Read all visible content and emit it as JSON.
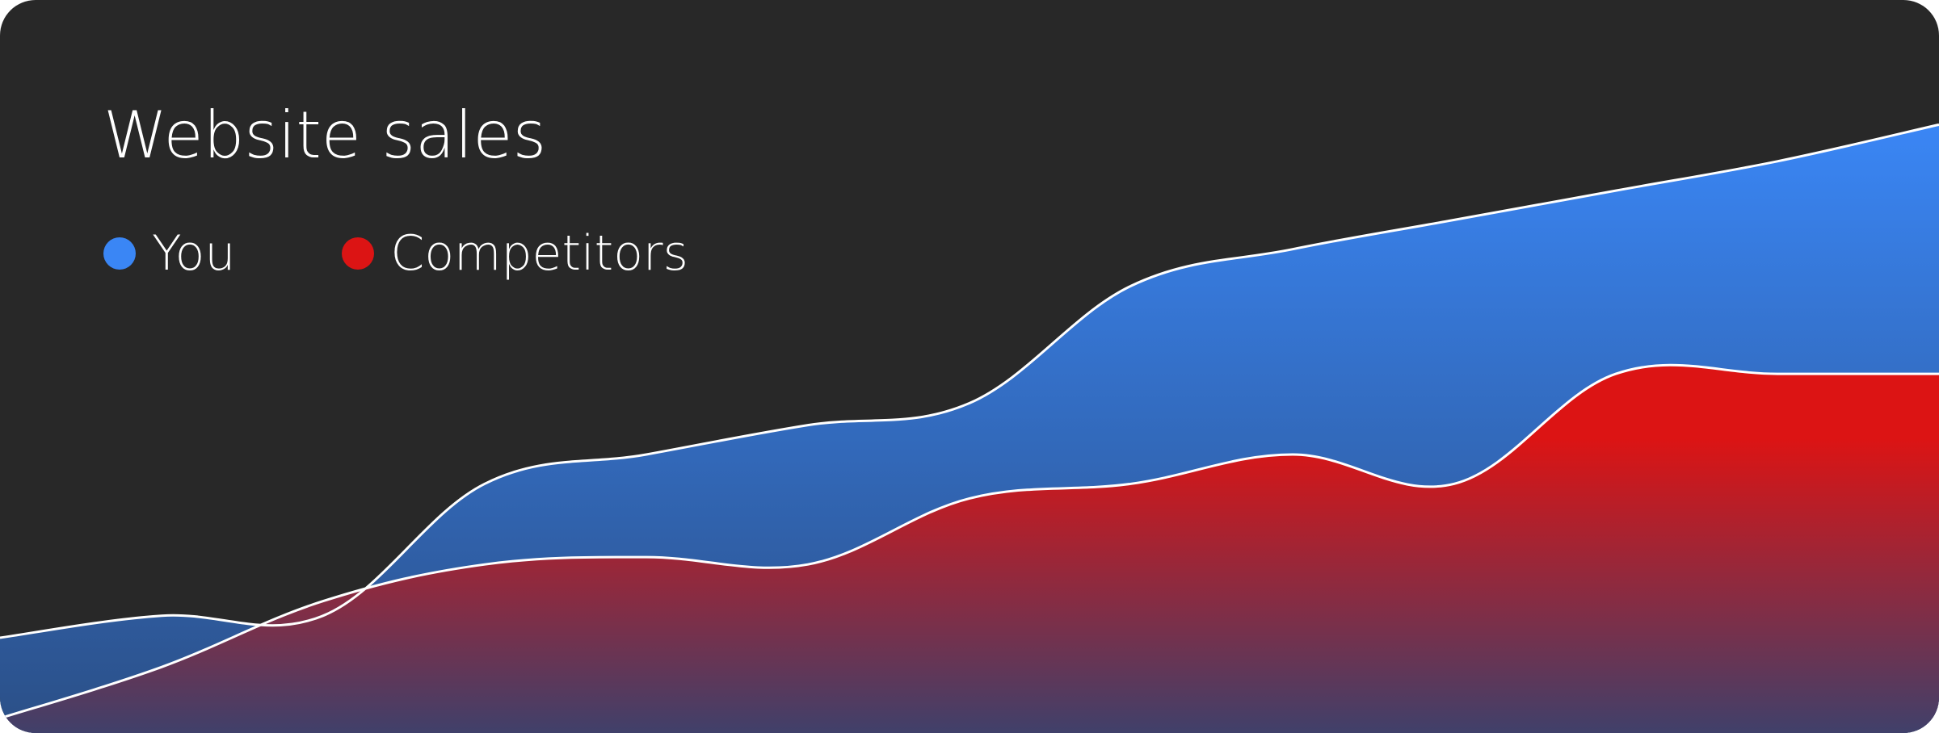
{
  "chart_data": {
    "type": "area",
    "title": "Website sales",
    "xlabel": "",
    "ylabel": "",
    "grid": false,
    "legend_position": "top-left",
    "ylim": [
      0,
      100
    ],
    "x": [
      0,
      1,
      2,
      3,
      4,
      5,
      6,
      7,
      8,
      9,
      10,
      11,
      12
    ],
    "series": [
      {
        "name": "You",
        "color": "#3A86F5",
        "color_bottom": "#2B4F86",
        "values": [
          13,
          16,
          16,
          34,
          38,
          42,
          45,
          61,
          66,
          70,
          74,
          78,
          83
        ]
      },
      {
        "name": "Competitors",
        "color": "#DC1414",
        "color_bottom": "#40406A",
        "values": [
          2,
          9,
          18,
          23,
          24,
          23,
          32,
          34,
          38,
          34,
          49,
          49,
          49
        ]
      }
    ]
  },
  "colors": {
    "background": "#282828",
    "outline": "#FFFFFF"
  }
}
